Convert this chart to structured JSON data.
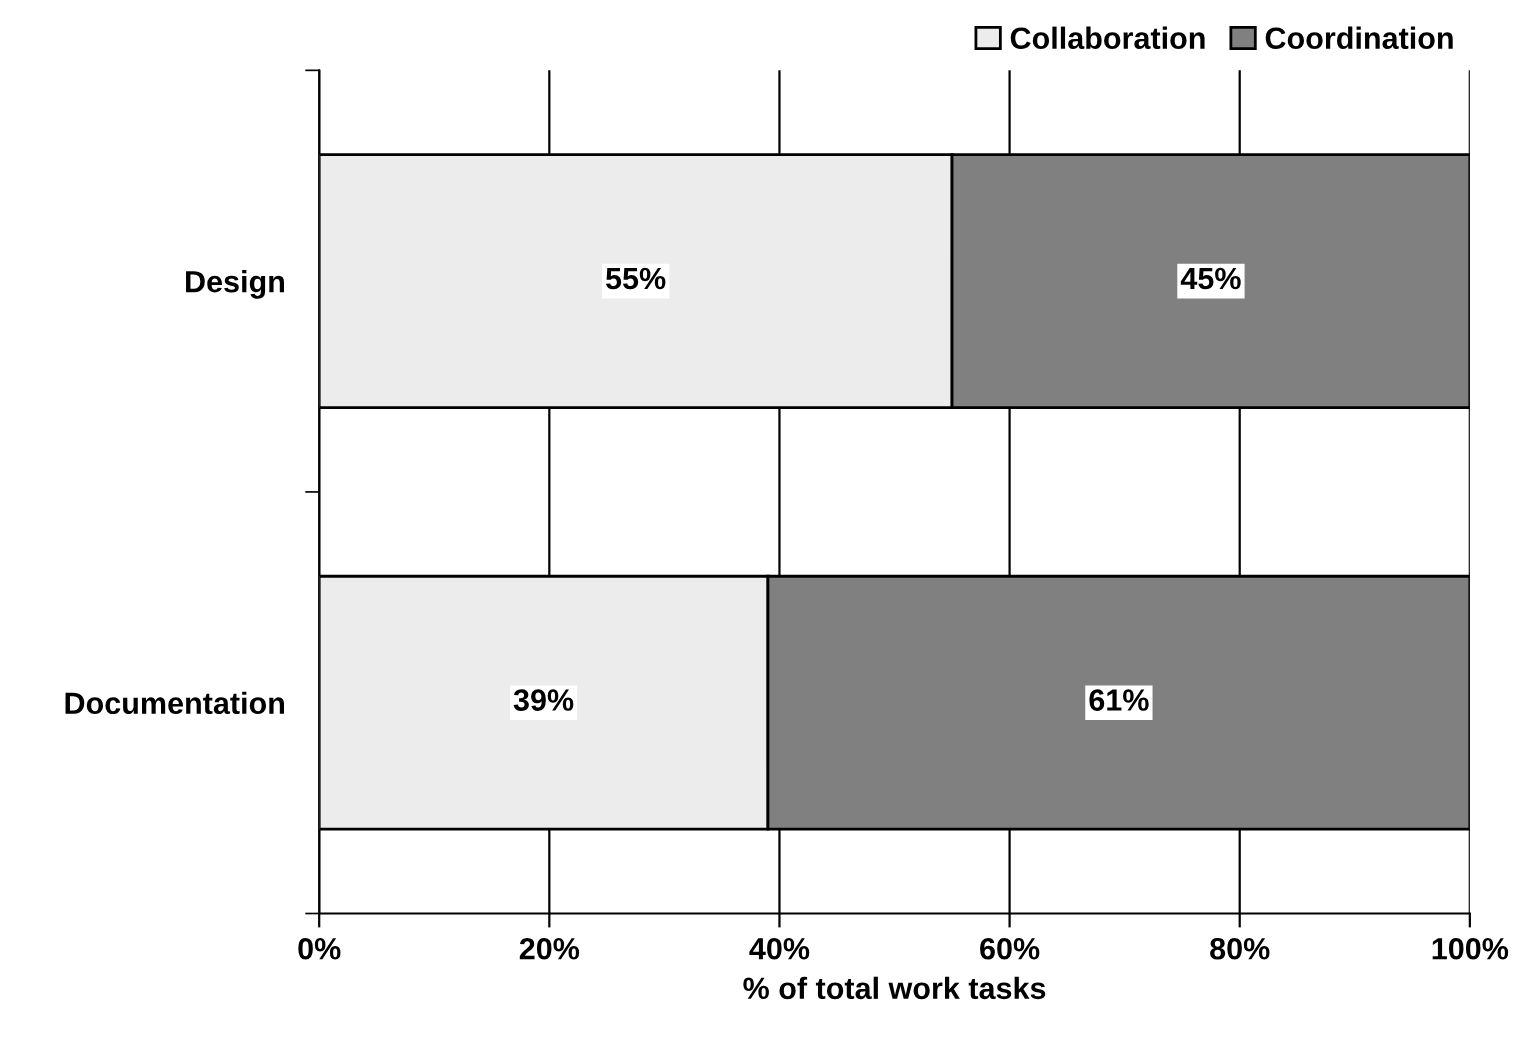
{
  "chart_data": {
    "type": "bar",
    "orientation": "horizontal",
    "stacked": true,
    "xlabel": "% of total work tasks",
    "categories": [
      "Design",
      "Documentation"
    ],
    "series": [
      {
        "name": "Collaboration",
        "color": "#ececec",
        "values": [
          55,
          39
        ],
        "value_labels": [
          "55%",
          "39%"
        ]
      },
      {
        "name": "Coordination",
        "color": "#808080",
        "values": [
          45,
          61
        ],
        "value_labels": [
          "45%",
          "61%"
        ]
      }
    ],
    "xlim": [
      0,
      100
    ],
    "xticks": [
      {
        "value": 0,
        "label": "0%"
      },
      {
        "value": 20,
        "label": "20%"
      },
      {
        "value": 40,
        "label": "40%"
      },
      {
        "value": 60,
        "label": "60%"
      },
      {
        "value": 80,
        "label": "80%"
      },
      {
        "value": 100,
        "label": "100%"
      }
    ],
    "grid": "x",
    "legend": "top right"
  }
}
